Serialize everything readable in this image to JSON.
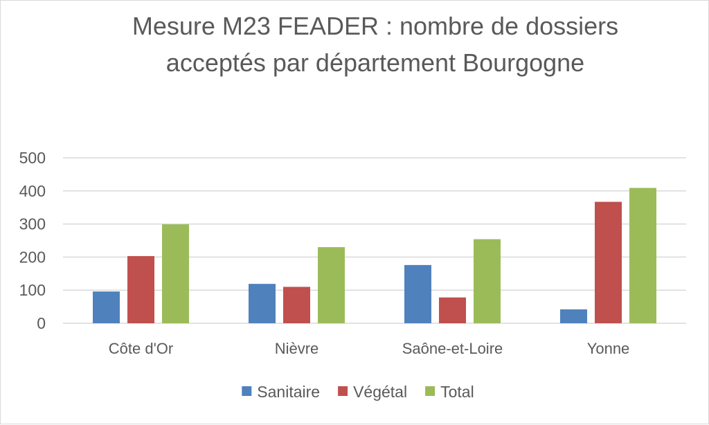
{
  "chart_data": {
    "type": "bar",
    "title_lines": [
      "Mesure M23  FEADER  : nombre de dossiers",
      "acceptés par département  Bourgogne"
    ],
    "categories": [
      "Côte d'Or",
      "Nièvre",
      "Saône-et-Loire",
      "Yonne"
    ],
    "series": [
      {
        "name": "Sanitaire",
        "color": "#4f81bd",
        "values": [
          96,
          119,
          176,
          42
        ]
      },
      {
        "name": "Végétal",
        "color": "#c0504d",
        "values": [
          203,
          110,
          78,
          367
        ]
      },
      {
        "name": "Total",
        "color": "#9bbb59",
        "values": [
          299,
          230,
          254,
          409
        ]
      }
    ],
    "yticks": [
      "0",
      "100",
      "200",
      "300",
      "400",
      "500"
    ],
    "ylim": [
      0,
      500
    ],
    "grid": true,
    "legend_position": "bottom"
  }
}
